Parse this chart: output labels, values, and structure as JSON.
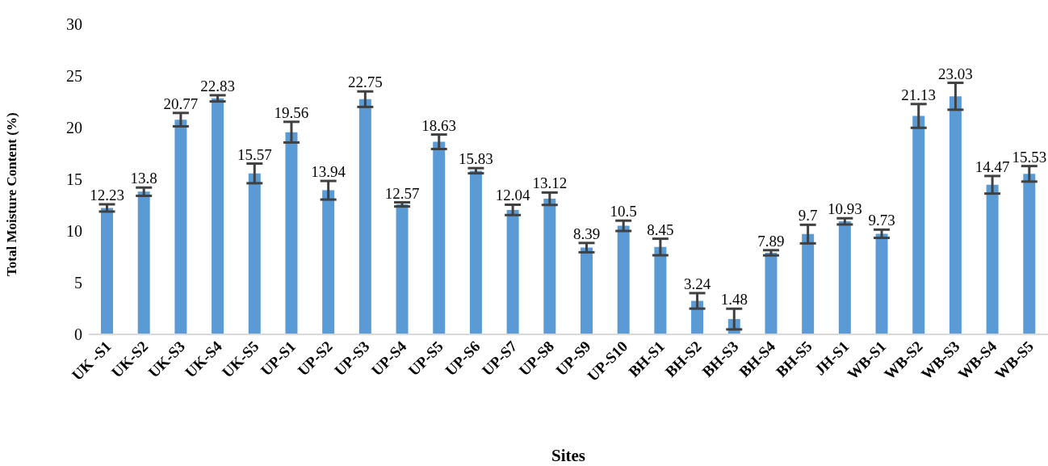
{
  "chart_data": {
    "type": "bar",
    "xlabel": "Sites",
    "ylabel": "Total Moisture Content (%)",
    "categories": [
      "UK -S1",
      "UK-S2",
      "UK-S3",
      "UK-S4",
      "UK-S5",
      "UP-S1",
      "UP-S2",
      "UP-S3",
      "UP-S4",
      "UP-S5",
      "UP-S6",
      "UP-S7",
      "UP-S8",
      "UP-S9",
      "UP-S10",
      "BH-S1",
      "BH-S2",
      "BH-S3",
      "BH-S4",
      "BH-S5",
      "JH-S1",
      "WB-S1",
      "WB-S2",
      "WB-S3",
      "WB-S4",
      "WB-S5"
    ],
    "values": [
      12.23,
      13.8,
      20.77,
      22.83,
      15.57,
      19.56,
      13.94,
      22.75,
      12.57,
      18.63,
      15.83,
      12.04,
      13.12,
      8.39,
      10.5,
      8.45,
      3.24,
      1.48,
      7.89,
      9.7,
      10.93,
      9.73,
      21.13,
      23.03,
      14.47,
      15.53
    ],
    "errors": [
      0.35,
      0.4,
      0.65,
      0.3,
      0.95,
      1.0,
      0.9,
      0.75,
      0.2,
      0.7,
      0.25,
      0.5,
      0.6,
      0.45,
      0.5,
      0.8,
      0.75,
      1.0,
      0.25,
      0.9,
      0.3,
      0.4,
      1.15,
      1.3,
      0.85,
      0.75
    ],
    "color": "#5b9bd5",
    "ylim": [
      0,
      30
    ],
    "yticks": [
      0,
      5,
      10,
      15,
      20,
      25,
      30
    ],
    "grid": false,
    "data_labels": true,
    "legend": false
  }
}
